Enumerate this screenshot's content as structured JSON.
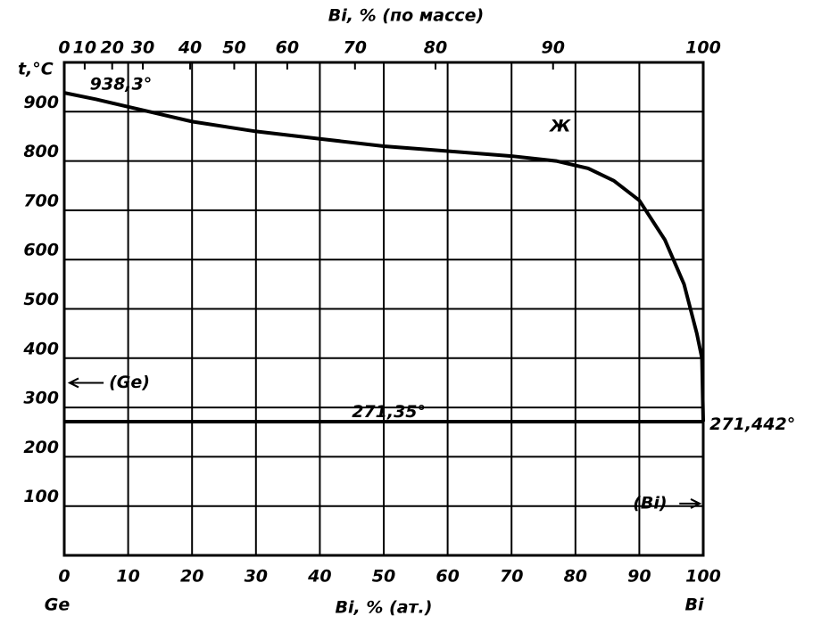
{
  "chart_data": {
    "type": "line",
    "xlabel": "Bi, % (ат.)",
    "x2label": "Bi, % (по массе)",
    "ylabel": "t,°C",
    "xlim": [
      0,
      100
    ],
    "ylim": [
      0,
      1000
    ],
    "xticks": [
      0,
      10,
      20,
      30,
      40,
      50,
      60,
      70,
      80,
      90,
      100
    ],
    "yticks": [
      100,
      200,
      300,
      400,
      500,
      600,
      700,
      800,
      900
    ],
    "x2ticks": [
      {
        "value": 0,
        "label": "0"
      },
      {
        "value": 3.2,
        "label": "10"
      },
      {
        "value": 7.5,
        "label": "20"
      },
      {
        "value": 12.3,
        "label": "30"
      },
      {
        "value": 19.7,
        "label": "40"
      },
      {
        "value": 26.6,
        "label": "50"
      },
      {
        "value": 34.9,
        "label": "60"
      },
      {
        "value": 45.5,
        "label": "70"
      },
      {
        "value": 58.1,
        "label": "80"
      },
      {
        "value": 76.5,
        "label": "90"
      },
      {
        "value": 100,
        "label": "100"
      }
    ],
    "grid": true,
    "color": "#000000",
    "components": [
      "Ge",
      "Bi"
    ],
    "series": [
      {
        "x": [
          0,
          5,
          10,
          20,
          30,
          40,
          50,
          60,
          70,
          77,
          82,
          86,
          90,
          94,
          97,
          99,
          99.8,
          100
        ],
        "values": [
          938.3,
          925,
          910,
          880,
          860,
          845,
          830,
          820,
          810,
          800,
          785,
          760,
          720,
          640,
          550,
          450,
          400,
          271.442
        ]
      },
      {
        "x": [
          0,
          100
        ],
        "values": [
          271.35,
          271.35
        ]
      }
    ],
    "annotations": [
      {
        "text": "938,3°",
        "x": 4,
        "y": 955
      },
      {
        "text": "Ж",
        "x": 76,
        "y": 870
      },
      {
        "text": "(Ge)",
        "x": 7,
        "y": 350
      },
      {
        "text": "271,35°",
        "x": 45,
        "y": 290
      },
      {
        "text": "271,442°",
        "x": 101,
        "y": 265
      },
      {
        "text": "(Bi)",
        "x": 89,
        "y": 105
      }
    ]
  }
}
